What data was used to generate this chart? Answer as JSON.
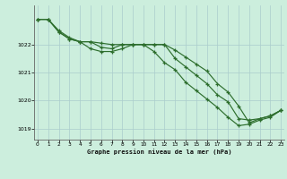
{
  "title": "Graphe pression niveau de la mer (hPa)",
  "background_color": "#cceedd",
  "line_color": "#2d6e2d",
  "grid_color": "#aacccc",
  "x_ticks": [
    0,
    1,
    2,
    3,
    4,
    5,
    6,
    7,
    8,
    9,
    10,
    11,
    12,
    13,
    14,
    15,
    16,
    17,
    18,
    19,
    20,
    21,
    22,
    23
  ],
  "y_ticks": [
    1019,
    1020,
    1021,
    1022
  ],
  "ylim": [
    1018.6,
    1023.4
  ],
  "xlim": [
    -0.3,
    23.3
  ],
  "series1": {
    "x": [
      0,
      1,
      2,
      3,
      4,
      5,
      6,
      7,
      8,
      9,
      10,
      11,
      12,
      13,
      14,
      15,
      16,
      17,
      18,
      19,
      20,
      21,
      22,
      23
    ],
    "y": [
      1022.9,
      1022.9,
      1022.45,
      1022.2,
      1022.1,
      1022.1,
      1021.9,
      1021.85,
      1022.0,
      1022.0,
      1022.0,
      1021.75,
      1021.35,
      1021.1,
      1020.65,
      1020.35,
      1020.05,
      1019.75,
      1019.4,
      1019.1,
      1019.15,
      1019.3,
      1019.4,
      1019.65
    ]
  },
  "series2": {
    "x": [
      0,
      1,
      2,
      3,
      4,
      5,
      6,
      7,
      8,
      9,
      10,
      11,
      12,
      13,
      14,
      15,
      16,
      17,
      18,
      19,
      20,
      21,
      22,
      23
    ],
    "y": [
      1022.9,
      1022.9,
      1022.45,
      1022.2,
      1022.1,
      1021.85,
      1021.75,
      1021.75,
      1021.85,
      1022.0,
      1022.0,
      1022.0,
      1022.0,
      1021.5,
      1021.2,
      1020.9,
      1020.6,
      1020.2,
      1019.95,
      1019.35,
      1019.3,
      1019.35,
      1019.45,
      1019.65
    ]
  },
  "series3": {
    "x": [
      0,
      1,
      2,
      3,
      4,
      5,
      6,
      7,
      8,
      9,
      10,
      11,
      12,
      13,
      14,
      15,
      16,
      17,
      18,
      19,
      20,
      21,
      22,
      23
    ],
    "y": [
      1022.9,
      1022.9,
      1022.5,
      1022.25,
      1022.1,
      1022.1,
      1022.05,
      1022.0,
      1022.0,
      1022.0,
      1022.0,
      1022.0,
      1022.0,
      1021.8,
      1021.55,
      1021.3,
      1021.05,
      1020.6,
      1020.3,
      1019.8,
      1019.2,
      1019.35,
      1019.45,
      1019.65
    ]
  }
}
